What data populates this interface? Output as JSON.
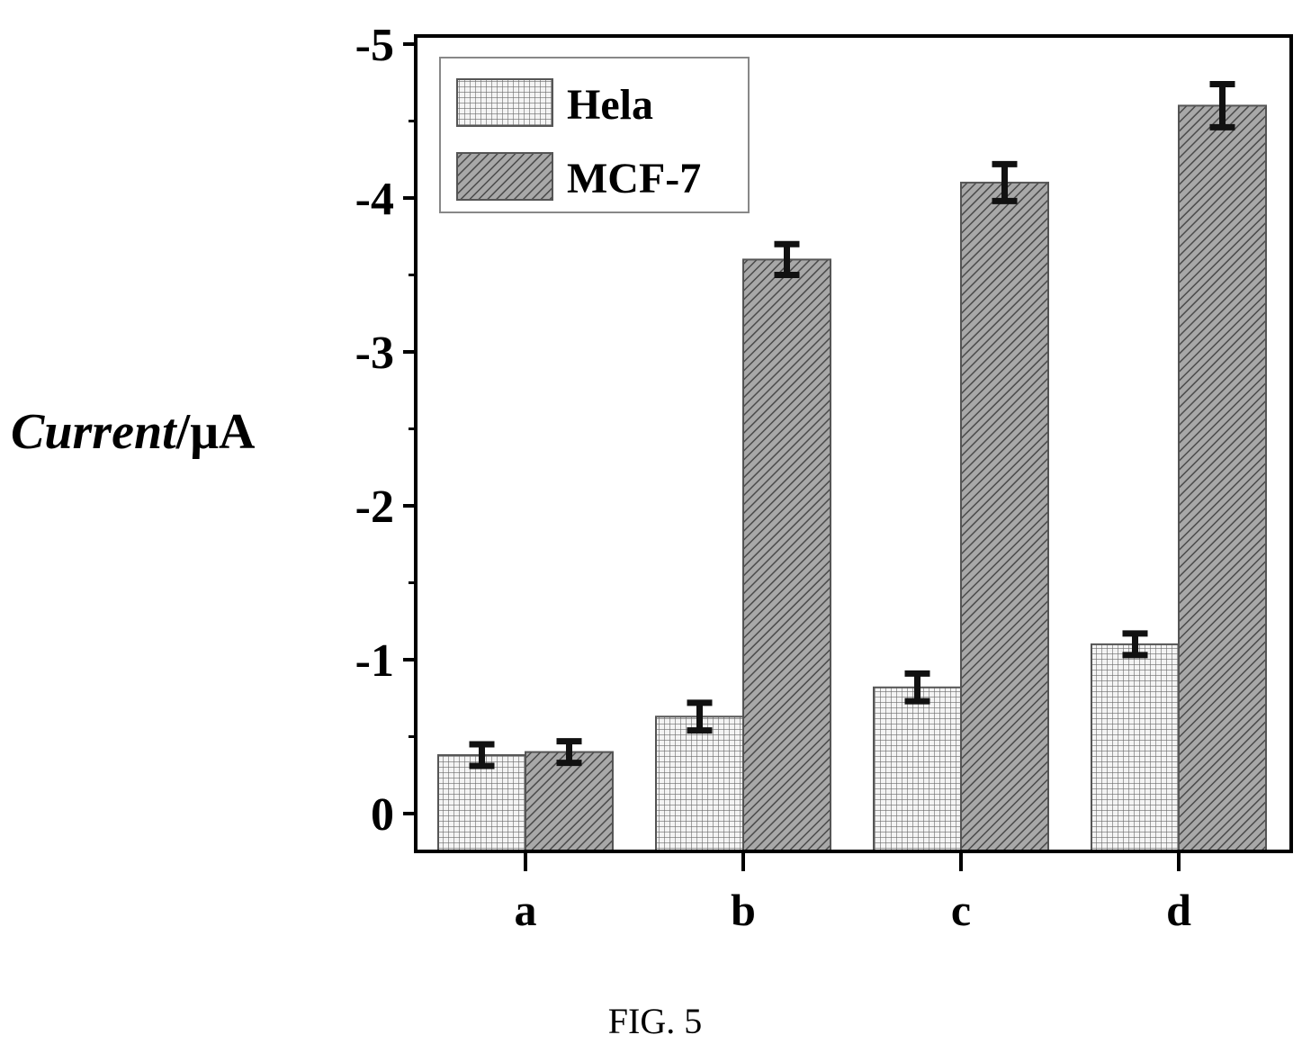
{
  "chart_data": {
    "type": "bar",
    "categories": [
      "a",
      "b",
      "c",
      "d"
    ],
    "series": [
      {
        "name": "Hela",
        "values": [
          -0.38,
          -0.63,
          -0.82,
          -1.1
        ],
        "errors": [
          0.07,
          0.09,
          0.09,
          0.07
        ],
        "pattern": "grid"
      },
      {
        "name": "MCF-7",
        "values": [
          -0.4,
          -3.6,
          -4.1,
          -4.6
        ],
        "errors": [
          0.07,
          0.1,
          0.12,
          0.14
        ],
        "pattern": "diagonal-hatch"
      }
    ],
    "ylabel_main": "Current",
    "ylabel_unit": "/μA",
    "xlabel": "",
    "ylim": [
      0.25,
      -5.15
    ],
    "y_axis_reversed": true,
    "yticks": [
      0,
      -1,
      -2,
      -3,
      -4,
      -5
    ],
    "ytick_labels": [
      "0",
      "-1",
      "-2",
      "-3",
      "-4",
      "-5"
    ],
    "legend_position": "top-left",
    "grid": false
  },
  "caption": "FIG. 5"
}
